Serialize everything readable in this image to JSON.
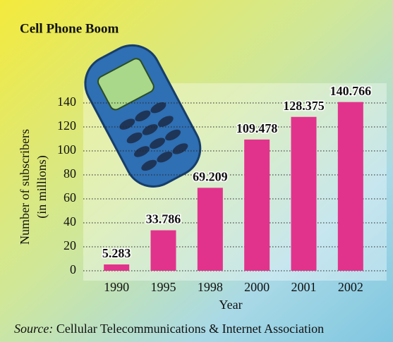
{
  "chart_data": {
    "type": "bar",
    "title": "Cell Phone Boom",
    "y_label_lines": [
      "Number of subscribers",
      "(in millions)"
    ],
    "x_label": "Year",
    "source": "Source:",
    "source_text": "Cellular Telecommunications & Internet Association",
    "categories": [
      "1990",
      "1995",
      "1998",
      "2000",
      "2001",
      "2002"
    ],
    "values": [
      5.283,
      33.786,
      69.209,
      109.478,
      128.375,
      140.766
    ],
    "color": "#e2338c",
    "ylim": [
      0,
      150
    ],
    "yticks": [
      0,
      20,
      40,
      60,
      80,
      100,
      120,
      140
    ],
    "grid": true
  }
}
